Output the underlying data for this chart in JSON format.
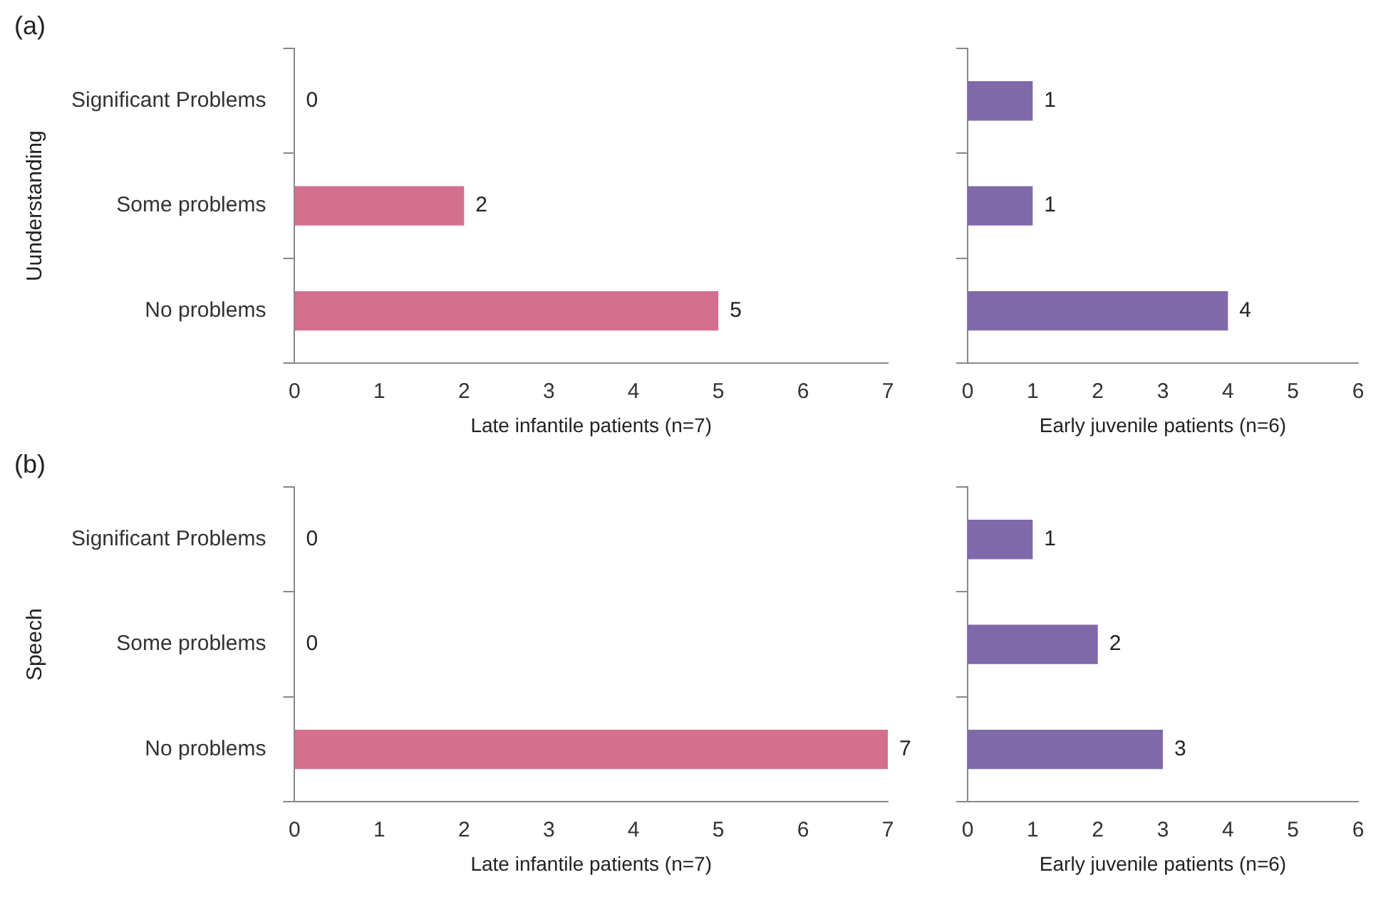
{
  "chart_data": [
    {
      "type": "bar",
      "orientation": "horizontal",
      "annotations": [
        "(a)"
      ],
      "ylabel": "Uunderstanding",
      "xlabel": "Late infantile patients (n=7)",
      "categories": [
        "Significant Problems",
        "Some problems",
        "No problems"
      ],
      "values": [
        0,
        2,
        5
      ],
      "color": "#d4708f",
      "xlim": [
        0,
        7
      ],
      "xticks": [
        0,
        1,
        2,
        3,
        4,
        5,
        6,
        7
      ],
      "data_labels": true,
      "grid": false,
      "legend": false
    },
    {
      "type": "bar",
      "orientation": "horizontal",
      "xlabel": "Early juvenile patients (n=6)",
      "categories": [
        null,
        null,
        null
      ],
      "values": [
        1,
        1,
        4
      ],
      "color": "#8069a8",
      "xlim": [
        0,
        6
      ],
      "xticks": [
        0,
        1,
        2,
        3,
        4,
        5,
        6
      ],
      "data_labels": true,
      "grid": false,
      "legend": false
    },
    {
      "type": "bar",
      "orientation": "horizontal",
      "annotations": [
        "(b)"
      ],
      "ylabel": "Speech",
      "xlabel": "Late infantile patients (n=7)",
      "categories": [
        "Significant Problems",
        "Some problems",
        "No problems"
      ],
      "values": [
        0,
        0,
        7
      ],
      "color": "#d4708f",
      "xlim": [
        0,
        7
      ],
      "xticks": [
        0,
        1,
        2,
        3,
        4,
        5,
        6,
        7
      ],
      "data_labels": true,
      "grid": false,
      "legend": false
    },
    {
      "type": "bar",
      "orientation": "horizontal",
      "xlabel": "Early juvenile patients (n=6)",
      "categories": [
        null,
        null,
        null
      ],
      "values": [
        1,
        2,
        3
      ],
      "color": "#8069a8",
      "xlim": [
        0,
        6
      ],
      "xticks": [
        0,
        1,
        2,
        3,
        4,
        5,
        6
      ],
      "data_labels": true,
      "grid": false,
      "legend": false
    }
  ]
}
